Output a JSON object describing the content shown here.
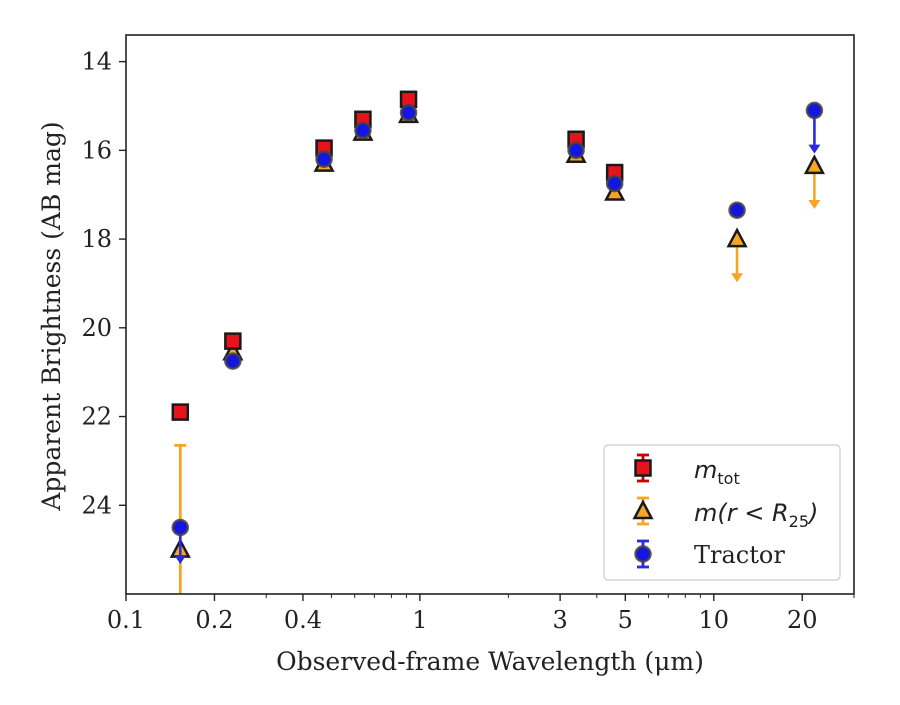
{
  "chart_data": {
    "type": "scatter",
    "xlabel": "Observed-frame Wavelength (μm)",
    "ylabel": "Apparent Brightness (AB mag)",
    "x_scale": "log",
    "y_inverted": true,
    "xlim": [
      0.1,
      30
    ],
    "ylim": [
      13.4,
      26.0
    ],
    "xticks": [
      {
        "value": 0.1,
        "label": "0.1"
      },
      {
        "value": 0.2,
        "label": "0.2"
      },
      {
        "value": 0.4,
        "label": "0.4"
      },
      {
        "value": 1,
        "label": "1"
      },
      {
        "value": 3,
        "label": "3"
      },
      {
        "value": 5,
        "label": "5"
      },
      {
        "value": 10,
        "label": "10"
      },
      {
        "value": 20,
        "label": "20"
      }
    ],
    "yticks": [
      {
        "value": 14,
        "label": "14"
      },
      {
        "value": 16,
        "label": "16"
      },
      {
        "value": 18,
        "label": "18"
      },
      {
        "value": 20,
        "label": "20"
      },
      {
        "value": 22,
        "label": "22"
      },
      {
        "value": 24,
        "label": "24"
      }
    ],
    "legend_position": "lower-right",
    "series": [
      {
        "name": "m_tot",
        "legend_main": "m",
        "legend_sub": "tot",
        "marker": "square",
        "fill": "#e8121a",
        "edge": "#1a1a1a",
        "errcolor": "#cc0000",
        "points": [
          {
            "x": 0.153,
            "y": 21.9
          },
          {
            "x": 0.231,
            "y": 20.3
          },
          {
            "x": 0.472,
            "y": 15.95
          },
          {
            "x": 0.64,
            "y": 15.3
          },
          {
            "x": 0.915,
            "y": 14.85
          },
          {
            "x": 3.4,
            "y": 15.75
          },
          {
            "x": 4.6,
            "y": 16.5
          }
        ]
      },
      {
        "name": "m(r < R_25)",
        "legend_main": "m(r < R",
        "legend_sub": "25",
        "legend_end": ")",
        "marker": "triangle",
        "fill": "#f5a623",
        "edge": "#1a1a1a",
        "errcolor": "#f5a623",
        "points": [
          {
            "x": 0.153,
            "y": 25.0,
            "err_low": 22.65
          },
          {
            "x": 0.231,
            "y": 20.55
          },
          {
            "x": 0.472,
            "y": 16.3
          },
          {
            "x": 0.64,
            "y": 15.6
          },
          {
            "x": 0.915,
            "y": 15.2
          },
          {
            "x": 3.4,
            "y": 16.1
          },
          {
            "x": 4.6,
            "y": 16.95
          },
          {
            "x": 12.0,
            "y": 18.0,
            "upper_limit_to": 18.95
          },
          {
            "x": 22.0,
            "y": 16.35,
            "upper_limit_to": 17.3
          }
        ]
      },
      {
        "name": "Tractor",
        "legend_main": "Tractor",
        "marker": "circle",
        "fill": "#1515e0",
        "edge": "#444444",
        "errcolor": "#2a2ae0",
        "points": [
          {
            "x": 0.153,
            "y": 24.5,
            "upper_limit_to": 25.3
          },
          {
            "x": 0.231,
            "y": 20.75
          },
          {
            "x": 0.472,
            "y": 16.2
          },
          {
            "x": 0.64,
            "y": 15.55
          },
          {
            "x": 0.915,
            "y": 15.15
          },
          {
            "x": 3.4,
            "y": 16.0
          },
          {
            "x": 4.6,
            "y": 16.75
          },
          {
            "x": 12.0,
            "y": 17.35
          },
          {
            "x": 22.0,
            "y": 15.1,
            "upper_limit_to": 16.05
          }
        ]
      }
    ]
  }
}
